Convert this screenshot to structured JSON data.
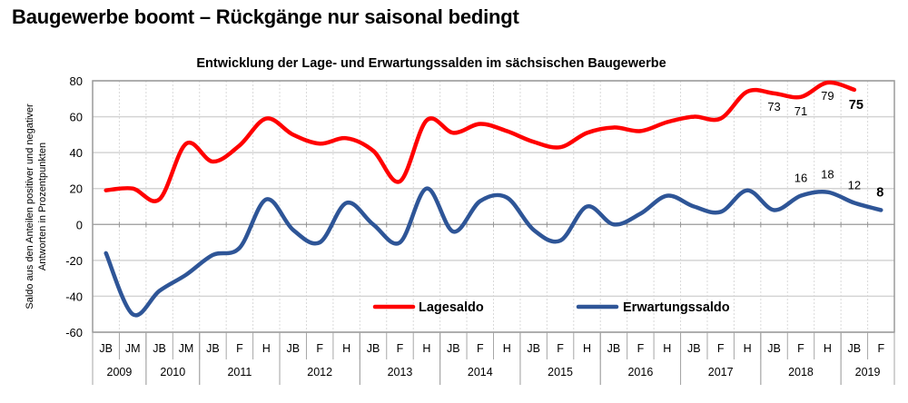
{
  "headline": "Baugewerbe boomt – Rückgänge nur saisonal bedingt",
  "chart_data": {
    "type": "line",
    "title": "Entwicklung der Lage- und Erwartungssalden im sächsischen Baugewerbe",
    "xlabel": "",
    "ylabel": "Saldo aus den Anteilen positiver und negativer Antworten in Prozentpunkten",
    "ylim": [
      -60,
      80
    ],
    "yticks": [
      80,
      60,
      40,
      20,
      0,
      -20,
      -40,
      -60
    ],
    "grid": true,
    "legend_position": "bottom-center",
    "categories": [
      "JB",
      "JM",
      "JB",
      "JM",
      "JB",
      "F",
      "H",
      "JB",
      "F",
      "H",
      "JB",
      "F",
      "H",
      "JB",
      "F",
      "H",
      "JB",
      "F",
      "H",
      "JB",
      "F",
      "H",
      "JB",
      "F",
      "H",
      "JB",
      "F",
      "H",
      "JB",
      "F"
    ],
    "year_groups": [
      {
        "year": "2009",
        "span": 2
      },
      {
        "year": "2010",
        "span": 2
      },
      {
        "year": "2011",
        "span": 3
      },
      {
        "year": "2012",
        "span": 3
      },
      {
        "year": "2013",
        "span": 3
      },
      {
        "year": "2014",
        "span": 3
      },
      {
        "year": "2015",
        "span": 3
      },
      {
        "year": "2016",
        "span": 3
      },
      {
        "year": "2017",
        "span": 3
      },
      {
        "year": "2018",
        "span": 3
      },
      {
        "year": "2019",
        "span": 2
      }
    ],
    "series": [
      {
        "name": "Lagesaldo",
        "color": "#ff0000",
        "values": [
          19,
          20,
          14,
          45,
          35,
          44,
          59,
          50,
          45,
          48,
          41,
          24,
          58,
          51,
          56,
          52,
          46,
          43,
          51,
          54,
          52,
          57,
          60,
          59,
          74,
          73,
          71,
          79,
          75,
          null
        ],
        "labels": [
          {
            "index": 25,
            "text": "73",
            "bold": false
          },
          {
            "index": 26,
            "text": "71",
            "bold": false
          },
          {
            "index": 27,
            "text": "79",
            "bold": false
          },
          {
            "index": 28,
            "text": "75",
            "bold": true
          }
        ]
      },
      {
        "name": "Erwartungssaldo",
        "color": "#2e5597",
        "values": [
          -16,
          -50,
          -37,
          -28,
          -17,
          -13,
          14,
          -3,
          -10,
          12,
          0,
          -10,
          20,
          -4,
          13,
          15,
          -3,
          -9,
          10,
          0,
          6,
          16,
          10,
          7,
          19,
          8,
          16,
          18,
          12,
          8
        ],
        "labels": [
          {
            "index": 26,
            "text": "16",
            "bold": false
          },
          {
            "index": 27,
            "text": "18",
            "bold": false
          },
          {
            "index": 28,
            "text": "12",
            "bold": false
          },
          {
            "index": 29,
            "text": "8",
            "bold": true
          }
        ]
      }
    ]
  }
}
